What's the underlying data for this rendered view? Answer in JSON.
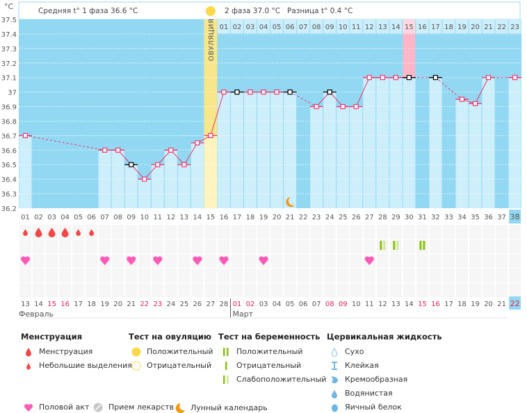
{
  "unit_label": "°C",
  "header": {
    "phase1_avg": "Средняя t° 1 фаза 36.6 °C",
    "phase2_avg": "2 фаза 37.0 °C",
    "difference": "Разница t° 0.4 °C",
    "ovulation_label": "ОВУЛЯЦИЯ"
  },
  "colors": {
    "bg_dark": "#93d8f2",
    "bar_light": "#cdeefb",
    "ovulation": "#f7e68a",
    "highlight": "#ffb6c8",
    "line": "#f0336b",
    "red_date": "#e8204f",
    "green": "#8cc010",
    "green_light": "#cfe69a",
    "heart": "#ff5ab8",
    "drop": "#f24848",
    "moon": "#f0960f"
  },
  "y_axis": {
    "min": 36.2,
    "max": 37.5,
    "ticks": [
      "37.5",
      "37.4",
      "37.3",
      "37.2",
      "37.1",
      "37",
      "36.9",
      "36.8",
      "36.7",
      "36.6",
      "36.5",
      "36.4",
      "36.3",
      "36.2"
    ]
  },
  "cycle_days": [
    "01",
    "02",
    "03",
    "04",
    "05",
    "06",
    "07",
    "08",
    "09",
    "10",
    "11",
    "12",
    "13",
    "14",
    "15",
    "16",
    "17",
    "18",
    "19",
    "20",
    "21",
    "22",
    "23",
    "24",
    "25",
    "26",
    "27",
    "28",
    "29",
    "30",
    "31",
    "32",
    "33",
    "34",
    "35",
    "36",
    "37",
    "38"
  ],
  "current_cycle_day": "38",
  "ovulation_day": 15,
  "phase2_days": [
    "01",
    "02",
    "03",
    "04",
    "05",
    "06",
    "07",
    "08",
    "09",
    "10",
    "11",
    "12",
    "13",
    "14",
    "15",
    "16",
    "17",
    "18",
    "19",
    "20",
    "21",
    "22",
    "23"
  ],
  "phase2_highlight": "15",
  "temperatures": [
    36.7,
    null,
    null,
    null,
    null,
    null,
    36.6,
    36.6,
    36.5,
    36.4,
    36.5,
    36.6,
    36.5,
    36.65,
    36.7,
    37.0,
    37.0,
    37.0,
    37.0,
    37.0,
    37.0,
    null,
    36.9,
    37.0,
    36.9,
    36.9,
    37.1,
    37.1,
    37.1,
    37.1,
    null,
    37.1,
    null,
    36.95,
    36.92,
    37.1,
    null,
    37.1
  ],
  "marked_days": [
    9,
    17,
    21,
    24,
    30,
    32
  ],
  "moon_day": 21,
  "menstruation": {
    "1": "light",
    "2": "heavy",
    "3": "heavy",
    "4": "heavy",
    "5": "light",
    "6": "light"
  },
  "pregnancy_tests": {
    "28": "weak",
    "29": "weak",
    "31": "positive"
  },
  "intercourse_days": [
    1,
    7,
    9,
    11,
    14,
    16,
    19,
    27
  ],
  "dates": [
    "13",
    "14",
    "15",
    "16",
    "17",
    "18",
    "19",
    "20",
    "21",
    "22",
    "23",
    "24",
    "25",
    "26",
    "27",
    "28",
    "01",
    "02",
    "03",
    "04",
    "05",
    "06",
    "07",
    "08",
    "09",
    "10",
    "11",
    "12",
    "13",
    "14",
    "15",
    "16",
    "17",
    "18",
    "19",
    "20",
    "21",
    "22"
  ],
  "red_dates_idx": [
    2,
    3,
    9,
    10,
    16,
    17,
    23,
    24,
    30,
    31,
    37
  ],
  "current_date": "22",
  "months": {
    "feb": "Февраль",
    "mar": "Март"
  },
  "legend": {
    "menstruation": {
      "title": "Менструация",
      "items": [
        "Менструация",
        "Небольшие выделения"
      ]
    },
    "ovulation_test": {
      "title": "Тест на овуляцию",
      "items": [
        "Положительный",
        "Отрицательный"
      ]
    },
    "pregnancy_test": {
      "title": "Тест на беременность",
      "items": [
        "Положительный",
        "Отрицательный",
        "Слабоположительный"
      ]
    },
    "cervical": {
      "title": "Цервикальная жидкость",
      "items": [
        "Сухо",
        "Клейкая",
        "Кремообразная",
        "Водянистая",
        "Яичный белок"
      ]
    },
    "other": [
      "Половой акт",
      "Прием лекарств",
      "Лунный календарь"
    ]
  }
}
